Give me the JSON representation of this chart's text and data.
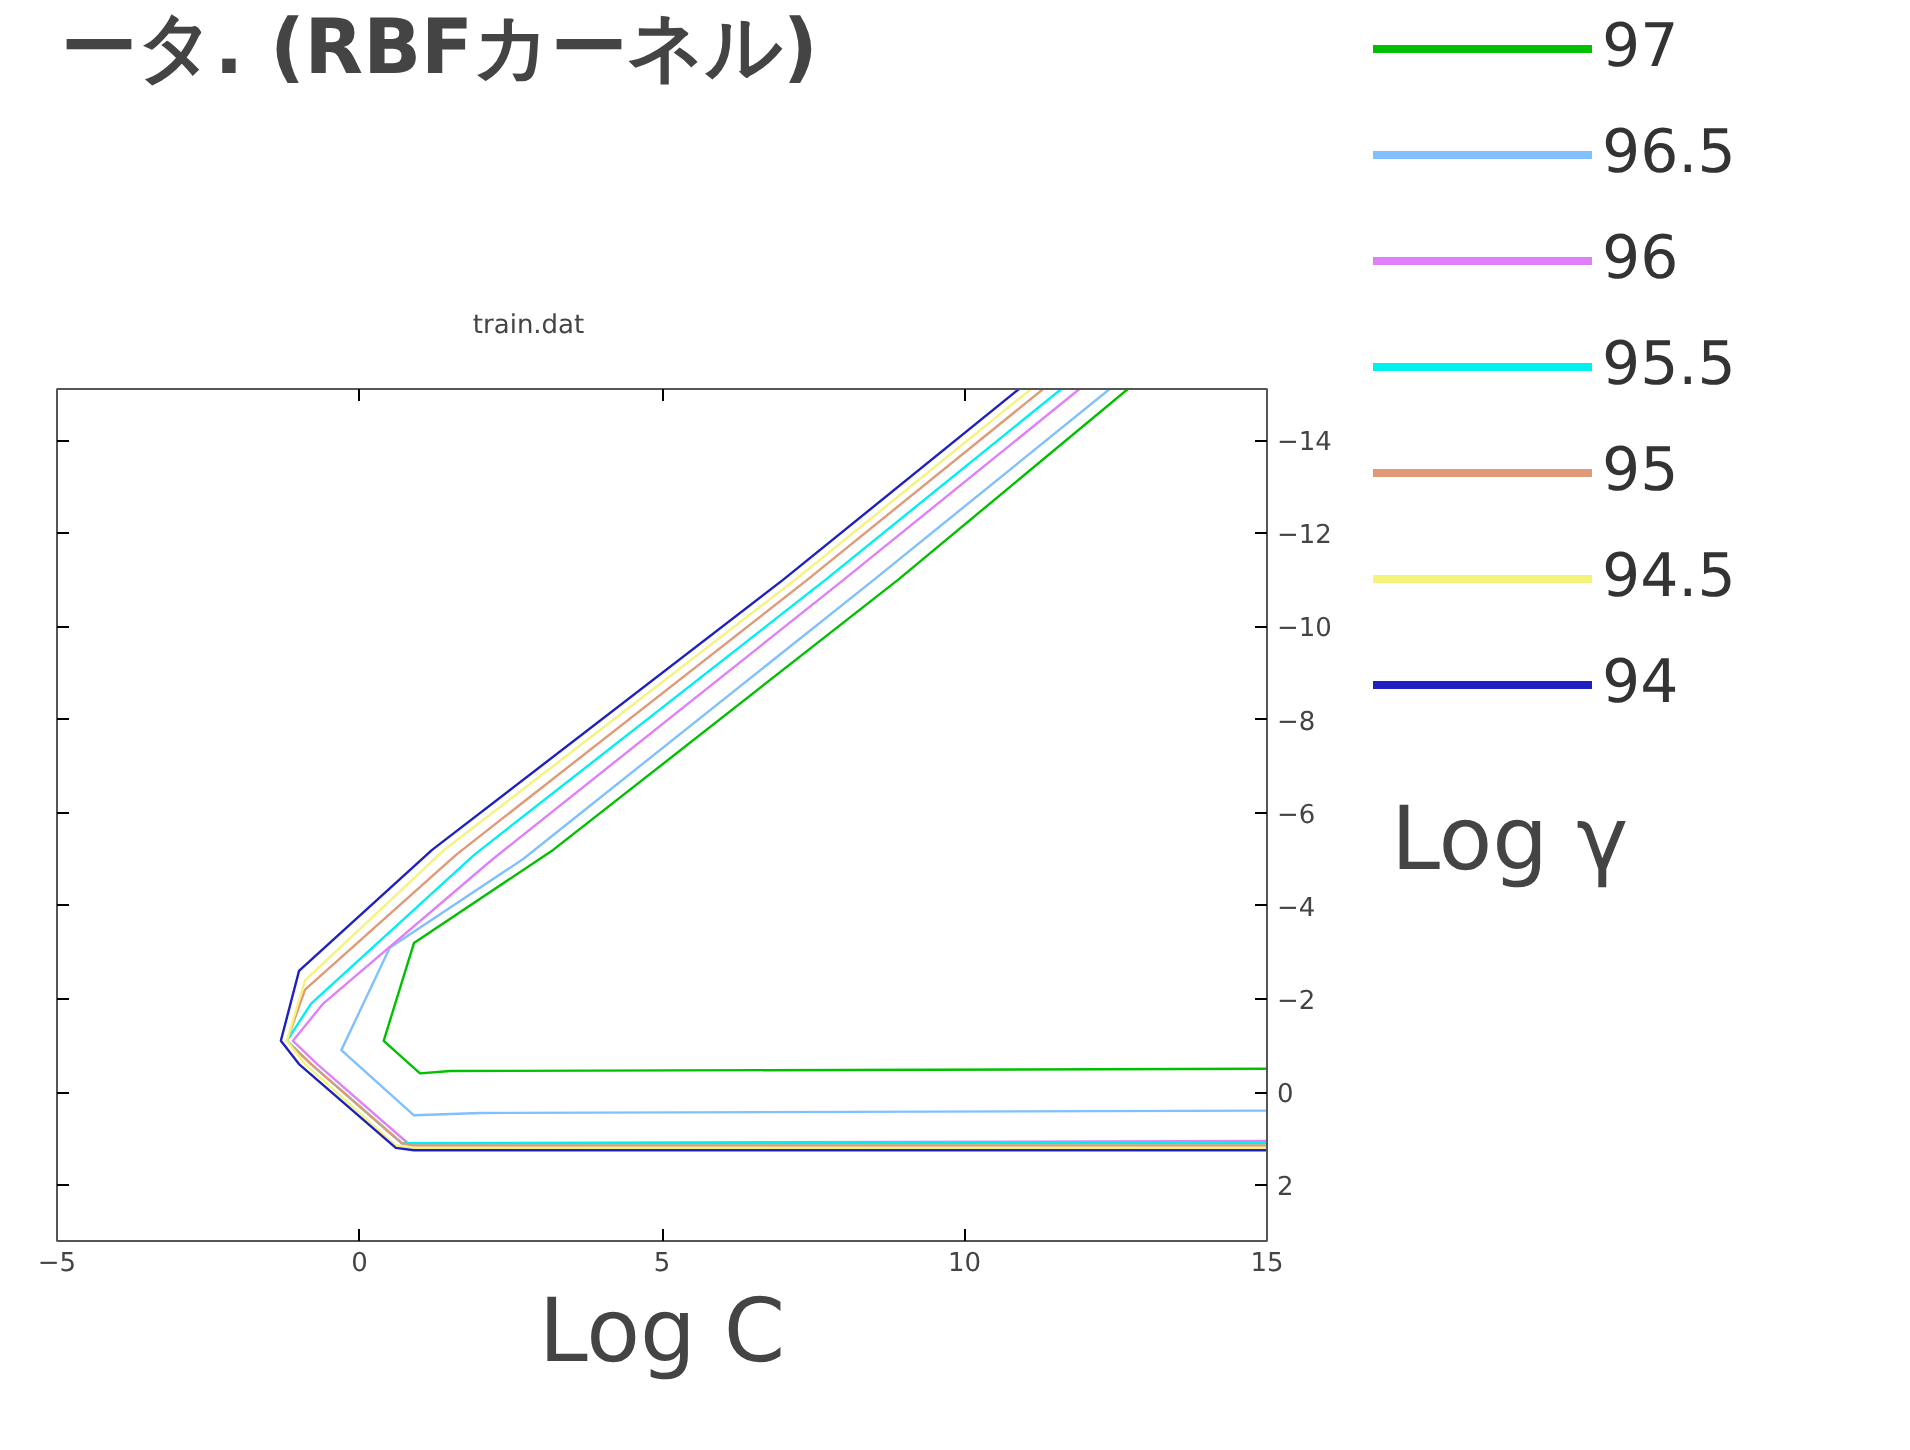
{
  "chart_data": {
    "type": "line",
    "title": "ータ. (RBFカーネル)",
    "subtitle": "train.dat",
    "xlabel": "Log C",
    "ylabel": "Log γ",
    "xlim": [
      -5,
      15
    ],
    "xticks": [
      -5,
      0,
      5,
      10,
      15
    ],
    "ylim": [
      3.2,
      -15.1
    ],
    "yticks": [
      2,
      0,
      -2,
      -4,
      -6,
      -8,
      -10,
      -12,
      -14
    ],
    "grid": false,
    "legend": "right",
    "series": [
      {
        "name": "97",
        "color": "#00c000",
        "x": [
          12.7,
          8.9,
          3.2,
          0.9,
          0.4,
          1.0,
          1.5,
          15
        ],
        "values": [
          -15.1,
          -11.0,
          -5.2,
          -3.2,
          -1.1,
          -0.4,
          -0.45,
          -0.5
        ]
      },
      {
        "name": "96.5",
        "color": "#80c0ff",
        "x": [
          12.4,
          8.5,
          2.7,
          0.5,
          -0.3,
          0.9,
          2.0,
          15
        ],
        "values": [
          -15.1,
          -11.0,
          -5.0,
          -3.1,
          -0.9,
          0.5,
          0.45,
          0.4
        ]
      },
      {
        "name": "96",
        "color": "#e080f8",
        "x": [
          11.9,
          8.0,
          2.2,
          -0.6,
          -1.1,
          -0.7,
          0.8,
          15
        ],
        "values": [
          -15.1,
          -11.0,
          -5.0,
          -1.9,
          -1.1,
          -0.6,
          1.1,
          1.05
        ]
      },
      {
        "name": "95.5",
        "color": "#00f0f0",
        "x": [
          11.6,
          7.7,
          1.9,
          -0.8,
          -1.2,
          -0.8,
          0.7,
          15
        ],
        "values": [
          -15.1,
          -11.0,
          -5.1,
          -1.9,
          -1.1,
          -0.6,
          1.1,
          1.1
        ]
      },
      {
        "name": "95",
        "color": "#e09a78",
        "x": [
          11.3,
          7.4,
          1.6,
          -0.9,
          -1.2,
          -0.8,
          0.7,
          0.9,
          15
        ],
        "values": [
          -15.1,
          -11.0,
          -5.1,
          -2.2,
          -1.1,
          -0.6,
          1.1,
          1.15,
          1.15
        ]
      },
      {
        "name": "94.5",
        "color": "#f4f47c",
        "x": [
          11.1,
          7.2,
          1.4,
          -0.9,
          -1.2,
          -0.9,
          0.6,
          0.9,
          15
        ],
        "values": [
          -15.1,
          -11.0,
          -5.2,
          -2.4,
          -1.1,
          -0.6,
          1.15,
          1.2,
          1.2
        ]
      },
      {
        "name": "94",
        "color": "#2020c0",
        "x": [
          10.9,
          7.0,
          1.2,
          -1.0,
          -1.3,
          -1.0,
          0.6,
          0.9,
          15
        ],
        "values": [
          -15.1,
          -11.0,
          -5.2,
          -2.6,
          -1.1,
          -0.6,
          1.2,
          1.25,
          1.25
        ]
      }
    ]
  }
}
